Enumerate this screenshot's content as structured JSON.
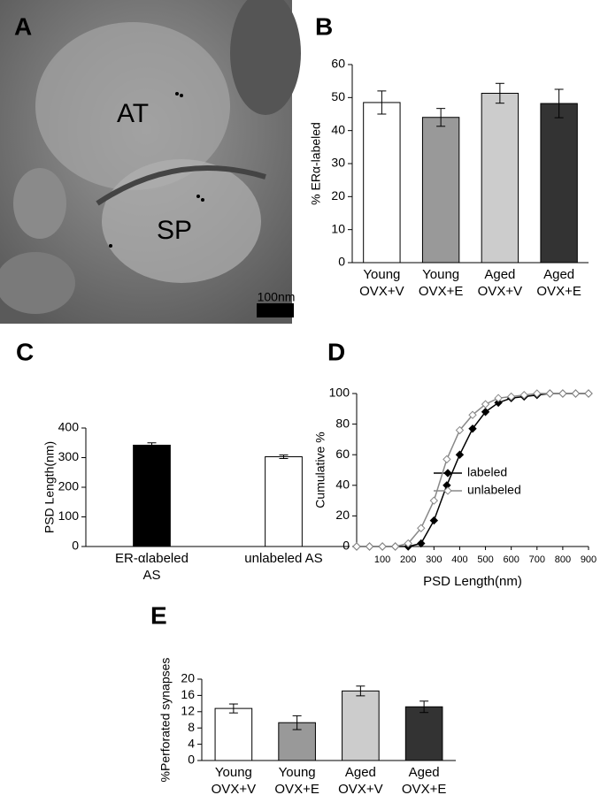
{
  "figure": {
    "panel_labels": [
      "A",
      "B",
      "C",
      "D",
      "E"
    ],
    "micrograph": {
      "labels": [
        "AT",
        "SP"
      ],
      "scale_bar": "100nm"
    }
  },
  "chart_data": [
    {
      "type": "bar",
      "ylabel": "% ERα-labeled",
      "categories": [
        [
          "Young",
          "OVX+V"
        ],
        [
          "Young",
          "OVX+E"
        ],
        [
          "Aged",
          "OVX+V"
        ],
        [
          "Aged",
          "OVX+E"
        ]
      ],
      "values": [
        48.5,
        44,
        51.3,
        48.2
      ],
      "errors": [
        3.5,
        2.7,
        3,
        4.3
      ],
      "colors": [
        "#ffffff",
        "#999999",
        "#cccccc",
        "#333333"
      ],
      "ylim": [
        0,
        60
      ],
      "yticks": [
        0,
        10,
        20,
        30,
        40,
        50,
        60
      ]
    },
    {
      "type": "bar",
      "ylabel": "PSD Length(nm)",
      "categories": [
        [
          "ER-αlabeled",
          "AS"
        ],
        [
          "unlabeled AS"
        ]
      ],
      "values": [
        342,
        303
      ],
      "errors": [
        8,
        6
      ],
      "colors": [
        "#000000",
        "#ffffff"
      ],
      "ylim": [
        0,
        400
      ],
      "yticks": [
        0,
        100,
        200,
        300,
        400
      ]
    },
    {
      "type": "line",
      "xlabel": "PSD Length(nm)",
      "ylabel": "Cumulative %",
      "x": [
        0,
        50,
        100,
        150,
        200,
        250,
        300,
        350,
        400,
        450,
        500,
        550,
        600,
        650,
        700,
        750,
        800,
        850,
        900
      ],
      "series": [
        {
          "name": "labeled",
          "color": "#000000",
          "filled": true,
          "values": [
            0,
            0,
            0,
            0,
            0,
            2,
            17,
            40,
            60,
            77,
            88,
            94,
            97,
            98,
            99,
            100,
            100,
            100,
            100
          ]
        },
        {
          "name": "unlabeled",
          "color": "#888888",
          "filled": false,
          "values": [
            0,
            0,
            0,
            0,
            2,
            12,
            30,
            57,
            76,
            86,
            93,
            97,
            98,
            99,
            100,
            100,
            100,
            100,
            100
          ]
        }
      ],
      "xlim": [
        0,
        900
      ],
      "xticks": [
        100,
        200,
        300,
        400,
        500,
        600,
        700,
        800,
        900
      ],
      "ylim": [
        0,
        100
      ],
      "yticks": [
        0,
        20,
        40,
        60,
        80,
        100
      ],
      "legend": "center right"
    },
    {
      "type": "bar",
      "ylabel": "%Perforated synapses",
      "categories": [
        [
          "Young",
          "OVX+V"
        ],
        [
          "Young",
          "OVX+E"
        ],
        [
          "Aged",
          "OVX+V"
        ],
        [
          "Aged",
          "OVX+E"
        ]
      ],
      "values": [
        12.8,
        9.3,
        17.1,
        13.2
      ],
      "errors": [
        1.1,
        1.7,
        1.2,
        1.4
      ],
      "colors": [
        "#ffffff",
        "#999999",
        "#cccccc",
        "#333333"
      ],
      "ylim": [
        0,
        20
      ],
      "yticks": [
        0,
        4,
        8,
        12,
        16,
        20
      ]
    }
  ]
}
